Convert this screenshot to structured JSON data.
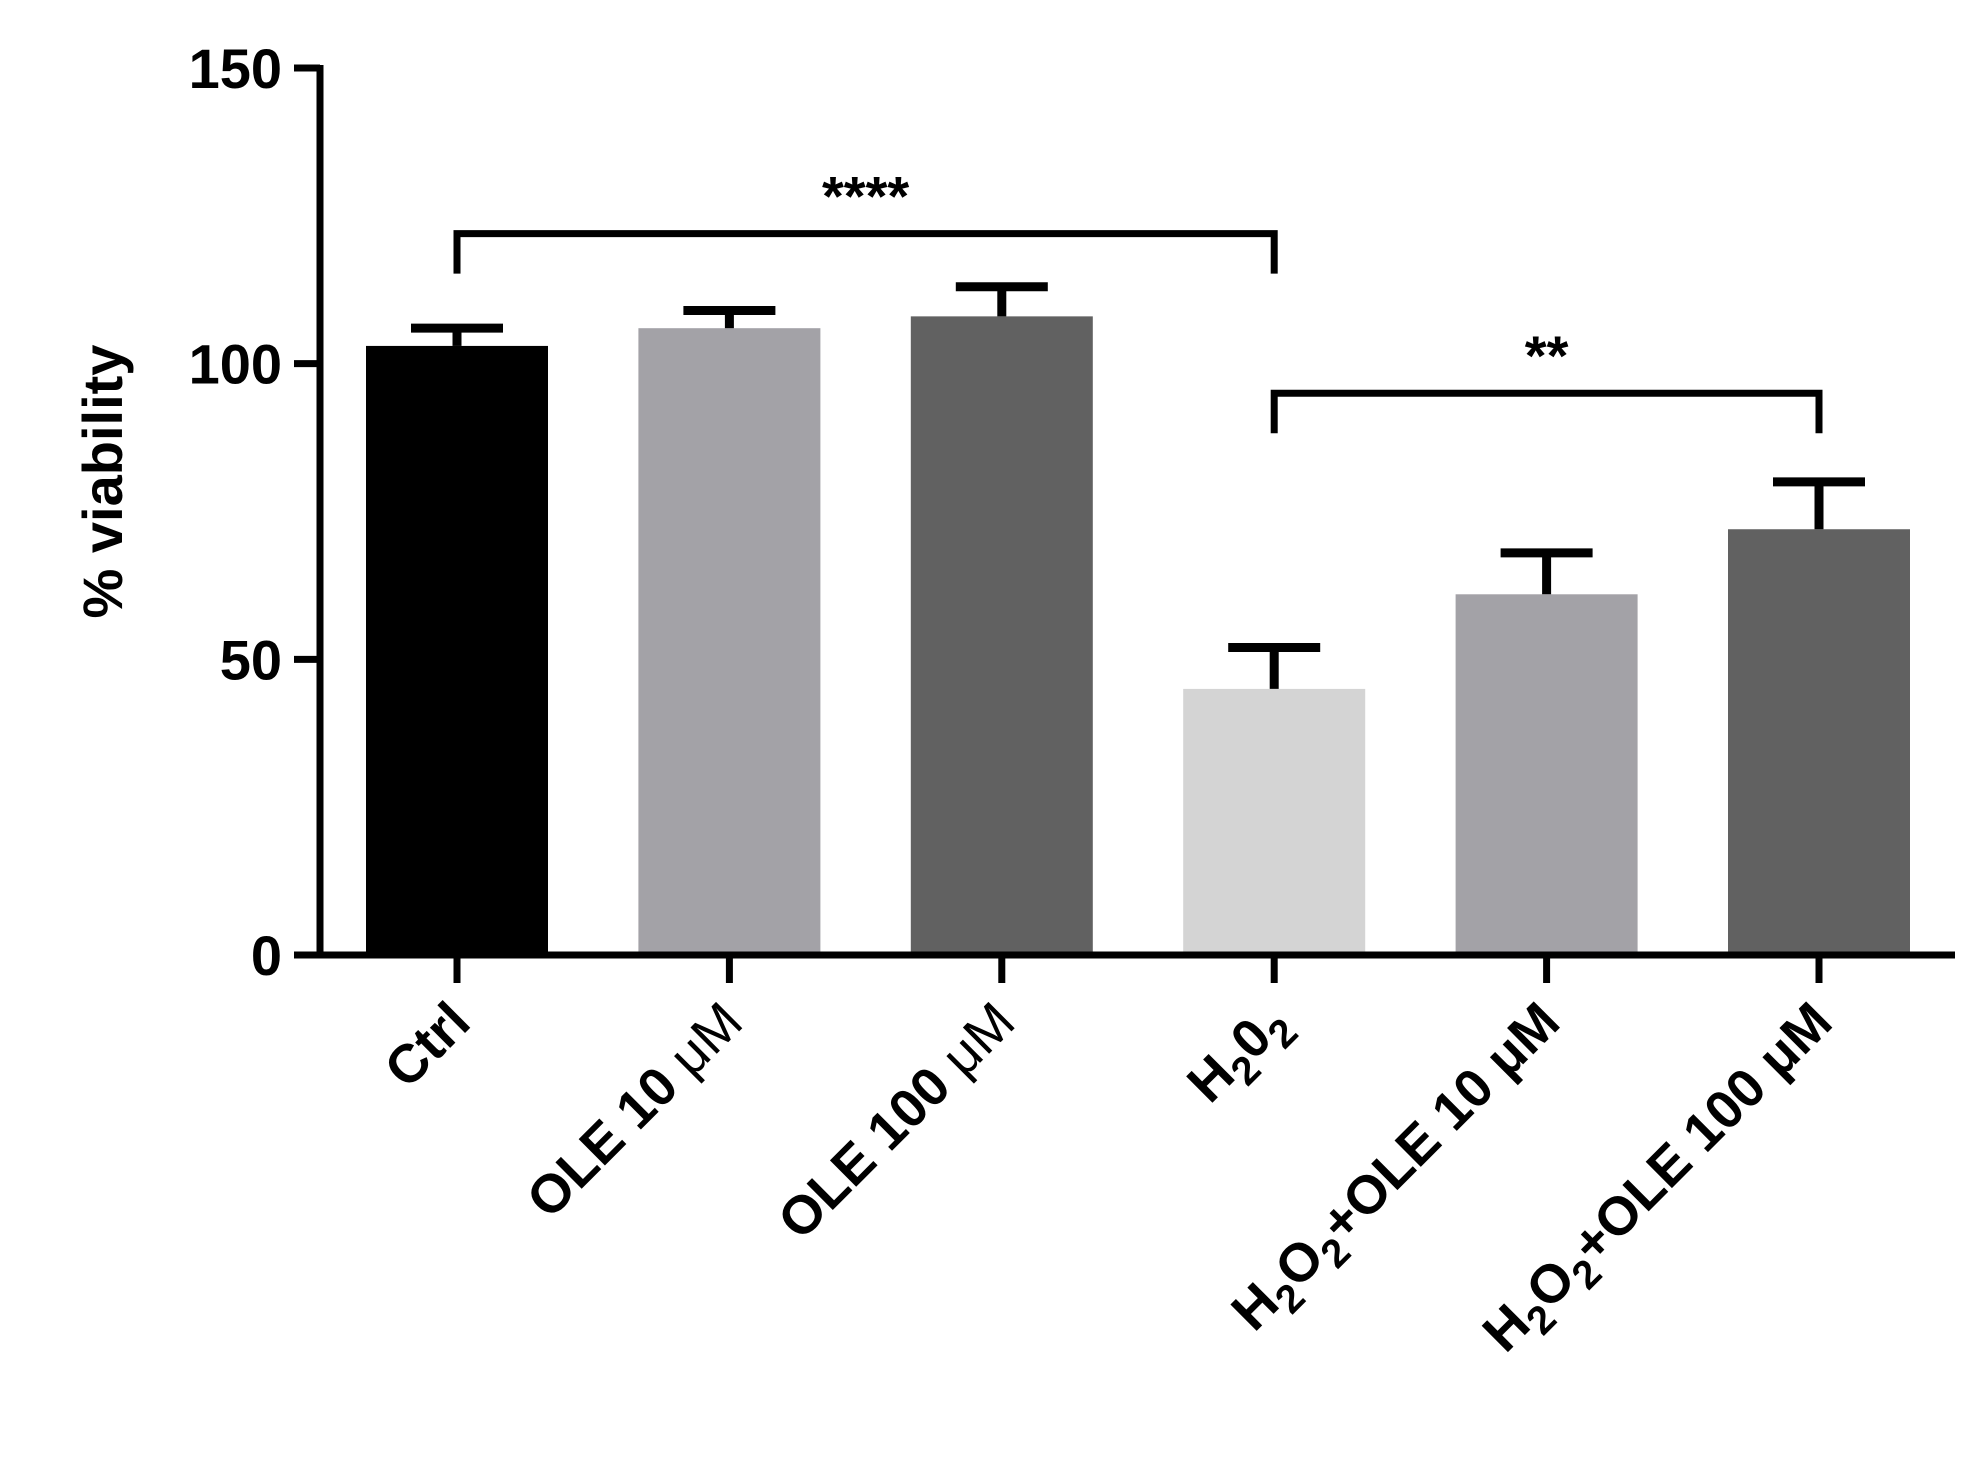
{
  "chart_data": {
    "type": "bar",
    "title": "",
    "xlabel": "",
    "ylabel": "% viability",
    "ylim": [
      0,
      150
    ],
    "yticks": [
      0,
      50,
      100,
      150
    ],
    "grid": false,
    "legend": "none",
    "categories": [
      {
        "base": "Ctrl"
      },
      {
        "base": "OLE 10 ",
        "suffix": "μM"
      },
      {
        "base": "OLE 100 ",
        "suffix": "μM"
      },
      {
        "parts": [
          [
            "H",
            ""
          ],
          [
            "2",
            "sub"
          ],
          [
            "0",
            ""
          ],
          [
            "2",
            "sub"
          ]
        ]
      },
      {
        "parts": [
          [
            "H",
            ""
          ],
          [
            "2",
            "sub"
          ],
          [
            "O",
            ""
          ],
          [
            "2",
            "sub"
          ],
          [
            "+OLE 10 ",
            ""
          ],
          [
            "μM",
            ""
          ]
        ]
      },
      {
        "parts": [
          [
            "H",
            ""
          ],
          [
            "2",
            "sub"
          ],
          [
            "O",
            ""
          ],
          [
            "2",
            "sub"
          ],
          [
            "+OLE 100 ",
            ""
          ],
          [
            "μM",
            ""
          ]
        ]
      }
    ],
    "values": [
      103,
      106,
      108,
      45,
      61,
      72
    ],
    "error_upper": [
      3,
      3,
      5,
      7,
      7,
      8
    ],
    "colors": [
      "#000000",
      "#a3a2a7",
      "#616161",
      "#d4d4d4",
      "#a3a2a7",
      "#616161"
    ],
    "significance": [
      {
        "from": 0,
        "to": 3,
        "label": "****",
        "y": 122
      },
      {
        "from": 3,
        "to": 5,
        "label": "**",
        "y": 95
      }
    ]
  }
}
